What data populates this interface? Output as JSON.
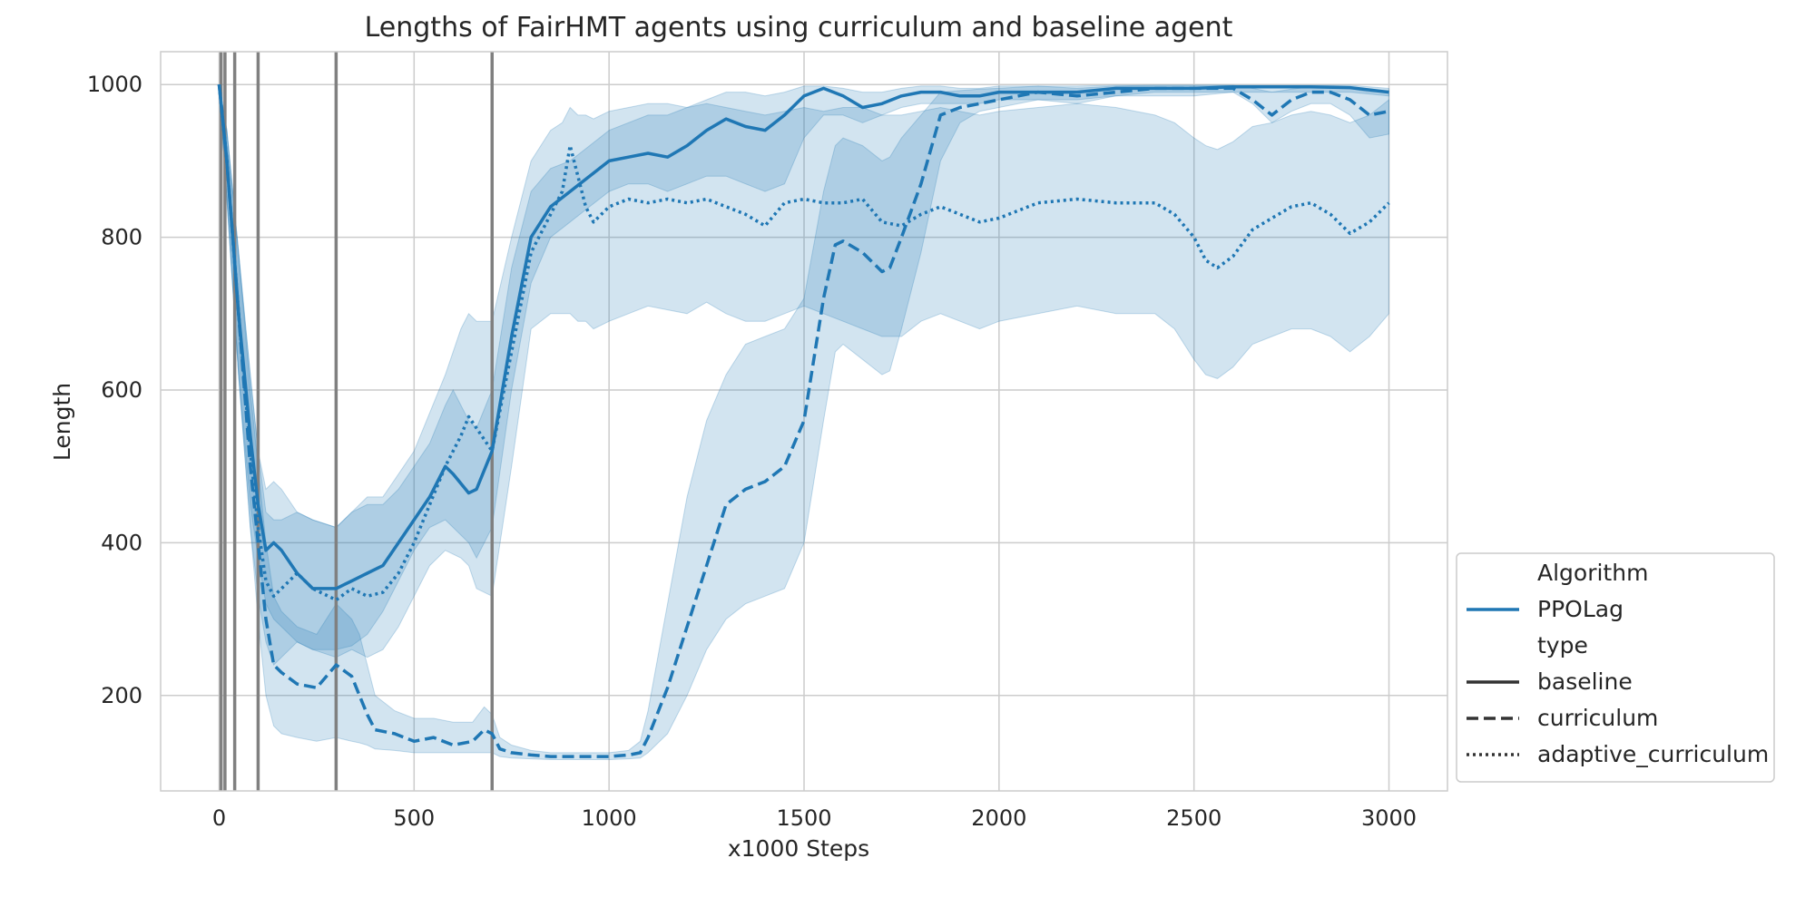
{
  "chart_data": {
    "type": "line",
    "title": "Lengths of FairHMT agents using curriculum and baseline agent",
    "xlabel": "x1000 Steps",
    "ylabel": "Length",
    "xlim": [
      -150,
      3150
    ],
    "ylim": [
      75,
      1043
    ],
    "xticks": [
      0,
      500,
      1000,
      1500,
      2000,
      2500,
      3000
    ],
    "yticks": [
      200,
      400,
      600,
      800,
      1000
    ],
    "grid": true,
    "line_color": "#1f77b4",
    "vlines": [
      5,
      15,
      40,
      100,
      300,
      700
    ],
    "vline_color": "#808080",
    "legend": {
      "position": "lower-right-outside",
      "algorithm_header": "Algorithm",
      "algorithm_items": [
        {
          "label": "PPOLag",
          "style": "solid",
          "color": "#1f77b4"
        }
      ],
      "type_header": "type",
      "type_items": [
        {
          "label": "baseline",
          "style": "solid",
          "color": "#333333"
        },
        {
          "label": "curriculum",
          "style": "dashed",
          "color": "#333333"
        },
        {
          "label": "adaptive_curriculum",
          "style": "dotted",
          "color": "#333333"
        }
      ]
    },
    "series": [
      {
        "name": "baseline",
        "style": "solid",
        "x": [
          0,
          20,
          50,
          80,
          100,
          120,
          140,
          160,
          200,
          240,
          300,
          340,
          380,
          420,
          460,
          500,
          540,
          580,
          600,
          640,
          660,
          700,
          750,
          800,
          850,
          900,
          950,
          1000,
          1050,
          1100,
          1150,
          1200,
          1250,
          1300,
          1350,
          1400,
          1450,
          1500,
          1550,
          1600,
          1650,
          1700,
          1750,
          1800,
          1850,
          1900,
          1950,
          2000,
          2100,
          2200,
          2300,
          2400,
          2500,
          2600,
          2700,
          2800,
          2900,
          3000
        ],
        "y": [
          1000,
          900,
          700,
          540,
          450,
          390,
          400,
          390,
          360,
          340,
          340,
          350,
          360,
          370,
          400,
          430,
          460,
          500,
          490,
          465,
          470,
          520,
          670,
          800,
          840,
          860,
          880,
          900,
          905,
          910,
          905,
          920,
          940,
          955,
          945,
          940,
          960,
          985,
          995,
          985,
          970,
          975,
          985,
          990,
          990,
          985,
          985,
          990,
          990,
          990,
          995,
          995,
          995,
          997,
          997,
          997,
          996,
          990
        ],
        "lower": [
          1000,
          850,
          620,
          450,
          380,
          320,
          300,
          290,
          270,
          260,
          260,
          265,
          280,
          310,
          350,
          390,
          420,
          430,
          420,
          400,
          380,
          420,
          600,
          740,
          800,
          820,
          840,
          860,
          870,
          870,
          860,
          870,
          880,
          880,
          870,
          860,
          870,
          930,
          960,
          960,
          950,
          960,
          970,
          975,
          975,
          975,
          975,
          980,
          980,
          980,
          985,
          985,
          985,
          990,
          990,
          990,
          990,
          985
        ],
        "upper": [
          1000,
          940,
          780,
          620,
          520,
          470,
          480,
          470,
          440,
          430,
          420,
          440,
          450,
          450,
          470,
          500,
          530,
          580,
          600,
          560,
          550,
          600,
          760,
          860,
          890,
          900,
          920,
          940,
          950,
          960,
          960,
          970,
          980,
          990,
          990,
          985,
          990,
          998,
          998,
          995,
          990,
          990,
          995,
          998,
          998,
          995,
          995,
          998,
          998,
          998,
          999,
          999,
          999,
          999,
          999,
          999,
          999,
          995
        ]
      },
      {
        "name": "curriculum",
        "style": "dashed",
        "x": [
          0,
          20,
          50,
          80,
          100,
          120,
          140,
          160,
          200,
          250,
          300,
          340,
          360,
          380,
          400,
          450,
          500,
          550,
          600,
          650,
          680,
          700,
          720,
          750,
          800,
          850,
          900,
          950,
          1000,
          1050,
          1080,
          1100,
          1150,
          1200,
          1250,
          1300,
          1350,
          1400,
          1450,
          1500,
          1550,
          1580,
          1600,
          1650,
          1700,
          1720,
          1750,
          1800,
          1850,
          1900,
          1950,
          2000,
          2100,
          2200,
          2300,
          2400,
          2500,
          2600,
          2650,
          2700,
          2750,
          2800,
          2850,
          2900,
          2950,
          3000
        ],
        "y": [
          1000,
          900,
          700,
          500,
          400,
          300,
          240,
          230,
          215,
          210,
          240,
          225,
          200,
          175,
          155,
          150,
          140,
          145,
          135,
          140,
          155,
          150,
          130,
          125,
          122,
          120,
          120,
          120,
          120,
          122,
          125,
          145,
          210,
          290,
          370,
          450,
          470,
          480,
          500,
          560,
          720,
          790,
          795,
          780,
          755,
          760,
          800,
          870,
          960,
          970,
          975,
          980,
          990,
          985,
          990,
          995,
          995,
          995,
          980,
          960,
          980,
          990,
          990,
          980,
          960,
          965
        ],
        "lower": [
          1000,
          850,
          620,
          420,
          300,
          200,
          160,
          150,
          145,
          140,
          145,
          140,
          138,
          135,
          130,
          128,
          125,
          125,
          125,
          125,
          125,
          125,
          120,
          118,
          117,
          116,
          116,
          116,
          116,
          117,
          118,
          125,
          150,
          200,
          260,
          300,
          320,
          330,
          340,
          400,
          560,
          650,
          660,
          640,
          620,
          625,
          680,
          780,
          900,
          950,
          965,
          970,
          980,
          975,
          985,
          990,
          990,
          990,
          975,
          950,
          965,
          975,
          975,
          960,
          930,
          935
        ],
        "upper": [
          1000,
          940,
          780,
          600,
          500,
          400,
          330,
          310,
          290,
          280,
          320,
          300,
          280,
          240,
          200,
          180,
          170,
          170,
          165,
          165,
          185,
          175,
          145,
          135,
          128,
          125,
          125,
          125,
          125,
          128,
          140,
          180,
          320,
          460,
          560,
          620,
          660,
          670,
          680,
          720,
          860,
          920,
          930,
          920,
          900,
          905,
          930,
          960,
          990,
          992,
          994,
          995,
          998,
          995,
          998,
          999,
          999,
          999,
          995,
          990,
          994,
          997,
          997,
          995,
          990,
          992
        ]
      },
      {
        "name": "adaptive_curriculum",
        "style": "dotted",
        "x": [
          0,
          20,
          50,
          80,
          100,
          120,
          140,
          160,
          200,
          240,
          300,
          340,
          380,
          420,
          460,
          500,
          540,
          580,
          620,
          640,
          660,
          700,
          750,
          800,
          850,
          880,
          900,
          920,
          940,
          960,
          1000,
          1050,
          1100,
          1150,
          1200,
          1250,
          1300,
          1350,
          1400,
          1450,
          1500,
          1550,
          1600,
          1650,
          1700,
          1750,
          1800,
          1850,
          1900,
          1950,
          2000,
          2100,
          2200,
          2300,
          2400,
          2450,
          2500,
          2530,
          2560,
          2600,
          2650,
          2700,
          2750,
          2800,
          2850,
          2900,
          2950,
          3000
        ],
        "y": [
          1000,
          900,
          700,
          520,
          420,
          350,
          330,
          340,
          360,
          340,
          325,
          340,
          330,
          335,
          360,
          400,
          450,
          500,
          540,
          565,
          550,
          520,
          650,
          780,
          830,
          860,
          920,
          880,
          840,
          820,
          840,
          850,
          845,
          850,
          845,
          850,
          840,
          830,
          815,
          845,
          850,
          845,
          845,
          850,
          820,
          815,
          830,
          840,
          830,
          820,
          825,
          845,
          850,
          845,
          845,
          830,
          800,
          770,
          760,
          775,
          810,
          825,
          840,
          845,
          830,
          805,
          820,
          845
        ],
        "lower": [
          1000,
          850,
          620,
          420,
          330,
          270,
          240,
          250,
          270,
          260,
          250,
          260,
          250,
          260,
          290,
          330,
          370,
          390,
          380,
          370,
          340,
          330,
          500,
          680,
          700,
          700,
          700,
          690,
          690,
          680,
          690,
          700,
          710,
          705,
          700,
          715,
          700,
          690,
          690,
          700,
          710,
          700,
          690,
          680,
          670,
          670,
          690,
          700,
          690,
          680,
          690,
          700,
          710,
          700,
          700,
          680,
          640,
          620,
          615,
          630,
          660,
          670,
          680,
          680,
          670,
          650,
          670,
          700
        ],
        "upper": [
          1000,
          940,
          780,
          620,
          520,
          440,
          430,
          430,
          440,
          430,
          420,
          440,
          460,
          460,
          490,
          520,
          570,
          620,
          680,
          700,
          690,
          690,
          800,
          900,
          940,
          950,
          970,
          960,
          960,
          955,
          965,
          970,
          975,
          975,
          970,
          975,
          970,
          965,
          960,
          965,
          970,
          965,
          970,
          970,
          960,
          960,
          965,
          970,
          965,
          960,
          965,
          970,
          975,
          970,
          960,
          950,
          930,
          920,
          915,
          925,
          945,
          950,
          960,
          965,
          960,
          950,
          960,
          980
        ]
      }
    ]
  }
}
